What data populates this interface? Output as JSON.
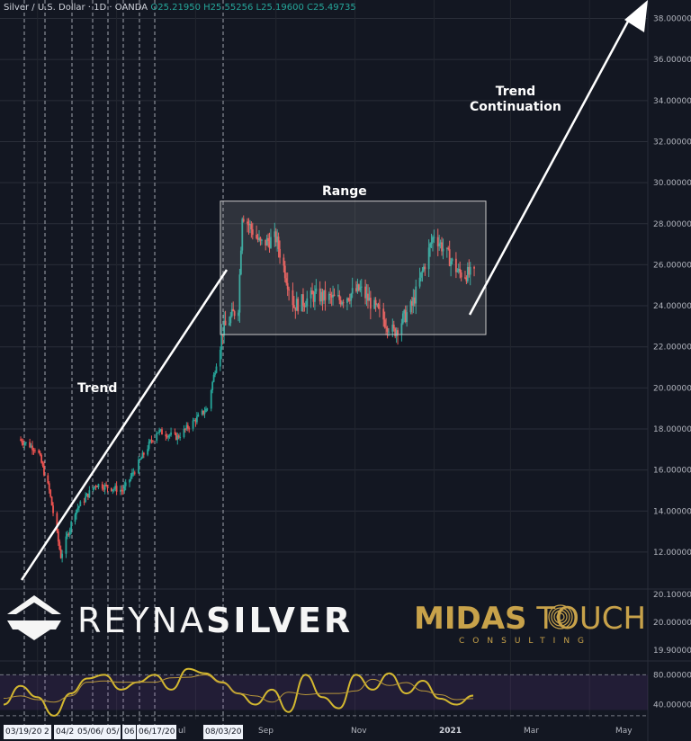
{
  "header": {
    "symbol": "Silver / U.S. Dollar · 1D · OANDA",
    "open": "O25.21950",
    "high": "H25.55256",
    "low": "L25.19600",
    "close": "C25.49735"
  },
  "annotations": {
    "trend": "Trend",
    "range": "Range",
    "continuation_line1": "Trend",
    "continuation_line2": "Continuation"
  },
  "logos": {
    "reyna_light": "REYNA",
    "reyna_bold": "SILVER",
    "midas_bold": "MIDAS",
    "midas_light": "TOUCH",
    "consulting": "CONSULTING"
  },
  "date_boxes": [
    "03/19/20",
    "2",
    "04/2",
    "05/06/",
    "05/",
    "06",
    "06/17/20",
    "ul",
    "08/03/20"
  ],
  "months": [
    "Sep",
    "Nov",
    "2021",
    "Mar",
    "May"
  ],
  "colors": {
    "background": "#131722",
    "up": "#26a69a",
    "down": "#ef5350",
    "oscillator": "#d4b830",
    "signal": "#b8963a",
    "range_box": "#c8c8c8",
    "arrow": "#ffffff",
    "reyna": "#f5f5f5",
    "midas": "#c8a24a"
  },
  "icons": [
    "reyna-silver-crown-icon",
    "midas-fingerprint-icon"
  ],
  "chart_data": [
    {
      "type": "candlestick",
      "title": "Silver / U.S. Dollar",
      "interval": "1D",
      "ylim": [
        10.2,
        38.9
      ],
      "yticks": [
        12,
        14,
        16,
        18,
        20,
        22,
        24,
        26,
        28,
        30,
        32,
        34,
        36,
        38
      ],
      "ytick_labels": [
        "12.00000",
        "14.00000",
        "16.00000",
        "18.00000",
        "20.00000",
        "22.00000",
        "24.00000",
        "26.00000",
        "28.00000",
        "30.00000",
        "32.00000",
        "34.00000",
        "36.00000",
        "38.00000"
      ],
      "x": [
        "2020-02-15",
        "2020-03-01",
        "2020-03-10",
        "2020-03-19",
        "2020-03-30",
        "2020-04-15",
        "2020-05-06",
        "2020-06-01",
        "2020-06-17",
        "2020-07-10",
        "2020-07-22",
        "2020-08-03",
        "2020-08-06",
        "2020-08-20",
        "2020-09-01",
        "2020-09-15",
        "2020-10-01",
        "2020-10-20",
        "2020-11-05",
        "2020-11-20",
        "2020-12-01",
        "2020-12-15",
        "2021-01-01",
        "2021-01-20",
        "2021-02-01"
      ],
      "close": [
        17.5,
        17.0,
        15.0,
        11.8,
        14.0,
        15.3,
        15.0,
        17.9,
        17.6,
        19.0,
        22.8,
        24.0,
        28.5,
        27.0,
        27.3,
        24.0,
        24.5,
        24.3,
        24.8,
        23.6,
        22.7,
        24.0,
        27.5,
        25.6,
        25.5
      ],
      "range_box": {
        "low": 22.6,
        "high": 29.1,
        "start": "2020-08-03",
        "end": "2021-02-10"
      },
      "annotations": [
        "Trend",
        "Range",
        "Trend Continuation"
      ]
    },
    {
      "type": "line",
      "title": "",
      "ylim": [
        20.1,
        19.9
      ],
      "yticks": [
        20.1,
        20.0,
        19.9
      ],
      "ytick_labels": [
        "20.10000",
        "20.00000",
        "19.90000"
      ]
    },
    {
      "type": "line",
      "title": "",
      "ylim": [
        20,
        95
      ],
      "yticks": [
        80,
        40
      ],
      "ytick_labels": [
        "80.00000",
        "40.00000"
      ],
      "series": [
        {
          "values": [
            40,
            65,
            50,
            25,
            55,
            75,
            80,
            60,
            70,
            80,
            60,
            88,
            82,
            70,
            55,
            40,
            60,
            30,
            80,
            50,
            35,
            80,
            60,
            82,
            55,
            72,
            48,
            40,
            52
          ]
        }
      ]
    }
  ]
}
